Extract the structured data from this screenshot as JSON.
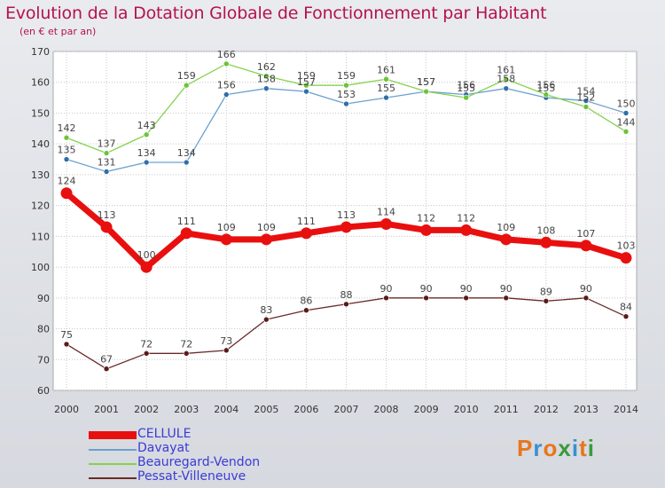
{
  "header": {
    "title": "Evolution de la Dotation Globale de Fonctionnement par Habitant",
    "subtitle": "(en € et par an)"
  },
  "logo": {
    "text": "Proxiti",
    "colors": [
      "#e8761c",
      "#3b8fd1",
      "#e8761c",
      "#3a9a3a",
      "#3b8fd1",
      "#e8761c",
      "#3a9a3a"
    ]
  },
  "chart_data": {
    "type": "line",
    "categories": [
      "2000",
      "2001",
      "2002",
      "2003",
      "2004",
      "2005",
      "2006",
      "2007",
      "2008",
      "2009",
      "2010",
      "2011",
      "2012",
      "2013",
      "2014"
    ],
    "ylim": [
      60,
      170
    ],
    "yticks": [
      60,
      70,
      80,
      90,
      100,
      110,
      120,
      130,
      140,
      150,
      160,
      170
    ],
    "grid": true,
    "legend_position": "bottom-left",
    "series": [
      {
        "name": "CELLULE",
        "color": "#e8100f",
        "marker": "#e8100f",
        "width": 7,
        "radius": 6.5,
        "values": [
          124,
          113,
          100,
          111,
          109,
          109,
          111,
          113,
          114,
          112,
          112,
          109,
          108,
          107,
          103
        ]
      },
      {
        "name": "Davayat",
        "color": "#6aa0d0",
        "marker": "#2f6ea8",
        "width": 1.3,
        "radius": 3,
        "values": [
          135,
          131,
          134,
          134,
          156,
          158,
          157,
          153,
          155,
          157,
          156,
          158,
          155,
          154,
          150
        ]
      },
      {
        "name": "Beauregard-Vendon",
        "color": "#86d24e",
        "marker": "#6cc23a",
        "width": 1.3,
        "radius": 3,
        "values": [
          142,
          137,
          143,
          159,
          166,
          162,
          159,
          159,
          161,
          157,
          155,
          161,
          156,
          152,
          144
        ]
      },
      {
        "name": "Pessat-Villeneuve",
        "color": "#6b2a2a",
        "marker": "#5a1a1a",
        "width": 1.3,
        "radius": 3,
        "values": [
          75,
          67,
          72,
          72,
          73,
          83,
          86,
          88,
          90,
          90,
          90,
          90,
          89,
          90,
          84
        ]
      }
    ]
  }
}
